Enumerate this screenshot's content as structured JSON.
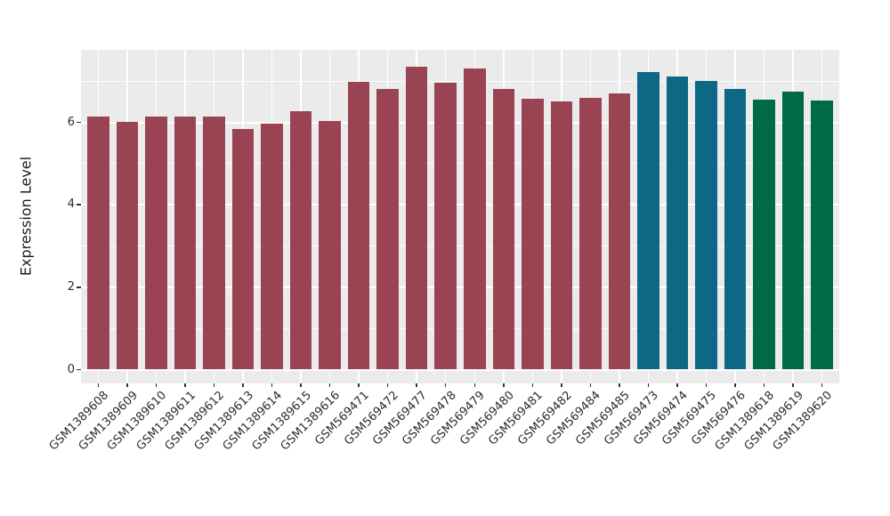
{
  "chart_data": {
    "type": "bar",
    "title": "",
    "xlabel": "",
    "ylabel": "Expression Level",
    "ylim": [
      0,
      7.76
    ],
    "yticks": [
      0,
      2,
      4,
      6
    ],
    "minor_yticks": [
      1,
      3,
      5,
      7
    ],
    "grid": true,
    "legend": "none",
    "panel_bg": "#EBEBEB",
    "grid_color": "#FFFFFF",
    "axis_text_color": "#2B2B2B",
    "palette": {
      "maroon": "#9A4453",
      "teal": "#0D6885",
      "green": "#006A46"
    },
    "categories": [
      "GSM1389608",
      "GSM1389609",
      "GSM1389610",
      "GSM1389611",
      "GSM1389612",
      "GSM1389613",
      "GSM1389614",
      "GSM1389615",
      "GSM1389616",
      "GSM569471",
      "GSM569472",
      "GSM569477",
      "GSM569478",
      "GSM569479",
      "GSM569480",
      "GSM569481",
      "GSM569482",
      "GSM569484",
      "GSM569485",
      "GSM569473",
      "GSM569474",
      "GSM569475",
      "GSM569476",
      "GSM1389618",
      "GSM1389619",
      "GSM1389620"
    ],
    "values": [
      6.14,
      6.02,
      6.13,
      6.14,
      6.13,
      5.83,
      5.96,
      6.28,
      6.04,
      6.98,
      6.82,
      7.36,
      6.97,
      7.31,
      6.8,
      6.57,
      6.5,
      6.6,
      6.7,
      7.23,
      7.11,
      7.0,
      6.8,
      6.55,
      6.75,
      6.53
    ],
    "bar_colors": [
      "#9A4453",
      "#9A4453",
      "#9A4453",
      "#9A4453",
      "#9A4453",
      "#9A4453",
      "#9A4453",
      "#9A4453",
      "#9A4453",
      "#9A4453",
      "#9A4453",
      "#9A4453",
      "#9A4453",
      "#9A4453",
      "#9A4453",
      "#9A4453",
      "#9A4453",
      "#9A4453",
      "#9A4453",
      "#0D6885",
      "#0D6885",
      "#0D6885",
      "#0D6885",
      "#006A46",
      "#006A46",
      "#006A46"
    ]
  }
}
